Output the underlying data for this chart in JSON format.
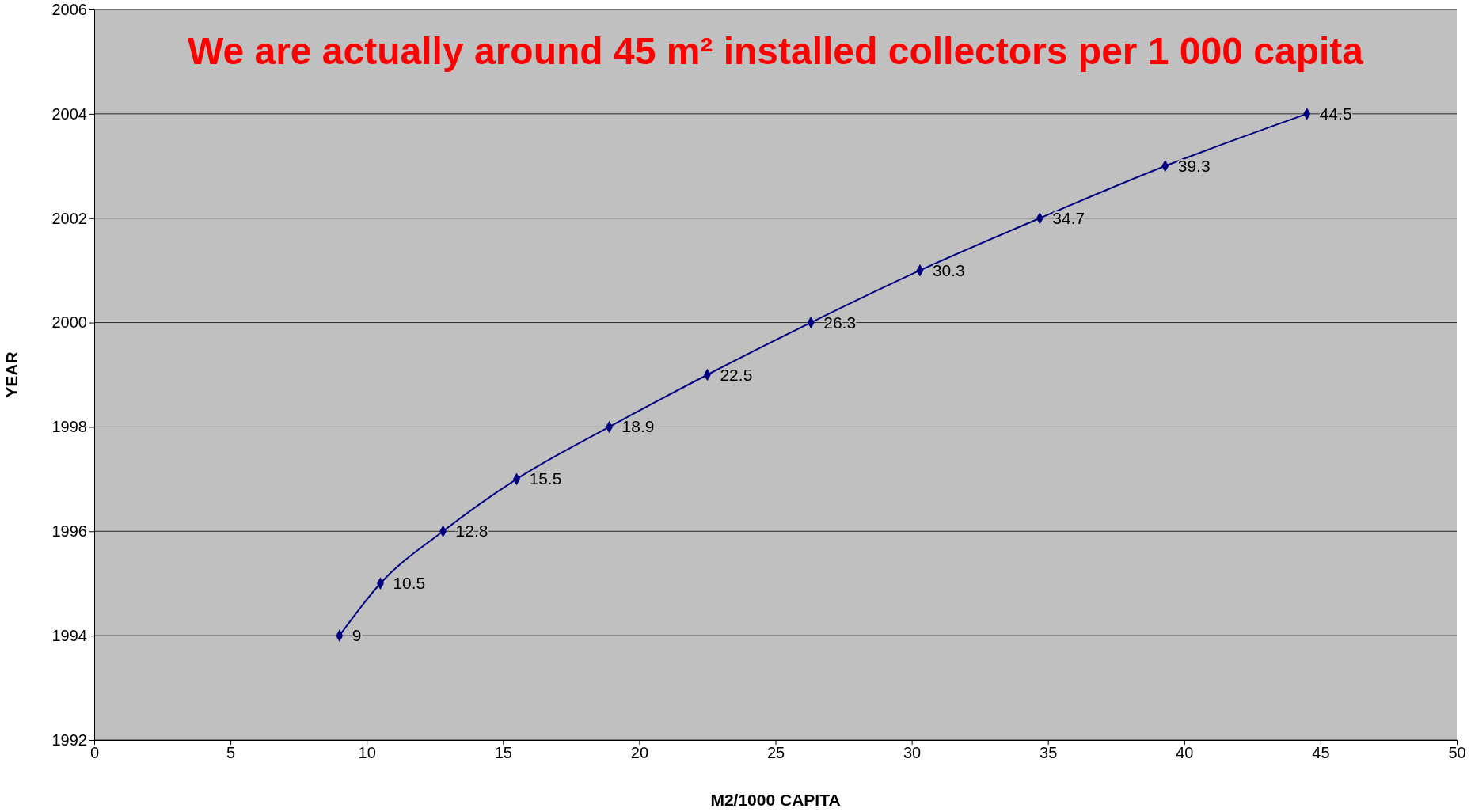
{
  "chart_data": {
    "type": "line",
    "xlabel": "M2/1000 CAPITA",
    "ylabel": "YEAR",
    "annotations": [
      "We are actually around 45 m² installed collectors per 1 000 capita",
      {
        "text": "9",
        "x": 9,
        "y": 1994
      },
      {
        "text": "10.5",
        "x": 10.5,
        "y": 1995
      },
      {
        "text": "12.8",
        "x": 12.8,
        "y": 1996
      },
      {
        "text": "15.5",
        "x": 15.5,
        "y": 1997
      },
      {
        "text": "18.9",
        "x": 18.9,
        "y": 1998
      },
      {
        "text": "22.5",
        "x": 22.5,
        "y": 1999
      },
      {
        "text": "26.3",
        "x": 26.3,
        "y": 2000
      },
      {
        "text": "30.3",
        "x": 30.3,
        "y": 2001
      },
      {
        "text": "34.7",
        "x": 34.7,
        "y": 2002
      },
      {
        "text": "39.3",
        "x": 39.3,
        "y": 2003
      },
      {
        "text": "44.5",
        "x": 44.5,
        "y": 2004
      }
    ],
    "x": [
      9,
      10.5,
      12.8,
      15.5,
      18.9,
      22.5,
      26.3,
      30.3,
      34.7,
      39.3,
      44.5
    ],
    "series": [
      {
        "color": "#000080",
        "values": [
          1994,
          1995,
          1996,
          1997,
          1998,
          1999,
          2000,
          2001,
          2002,
          2003,
          2004
        ]
      }
    ],
    "marker": "diamond",
    "line_style": "solid",
    "grid": "y",
    "xlim": [
      0,
      50
    ],
    "xticks": [
      0,
      5,
      10,
      15,
      20,
      25,
      30,
      35,
      40,
      45,
      50
    ],
    "ylim": [
      1992,
      2006
    ],
    "yticks": [
      1992,
      1994,
      1996,
      1998,
      2000,
      2002,
      2004,
      2006
    ]
  }
}
